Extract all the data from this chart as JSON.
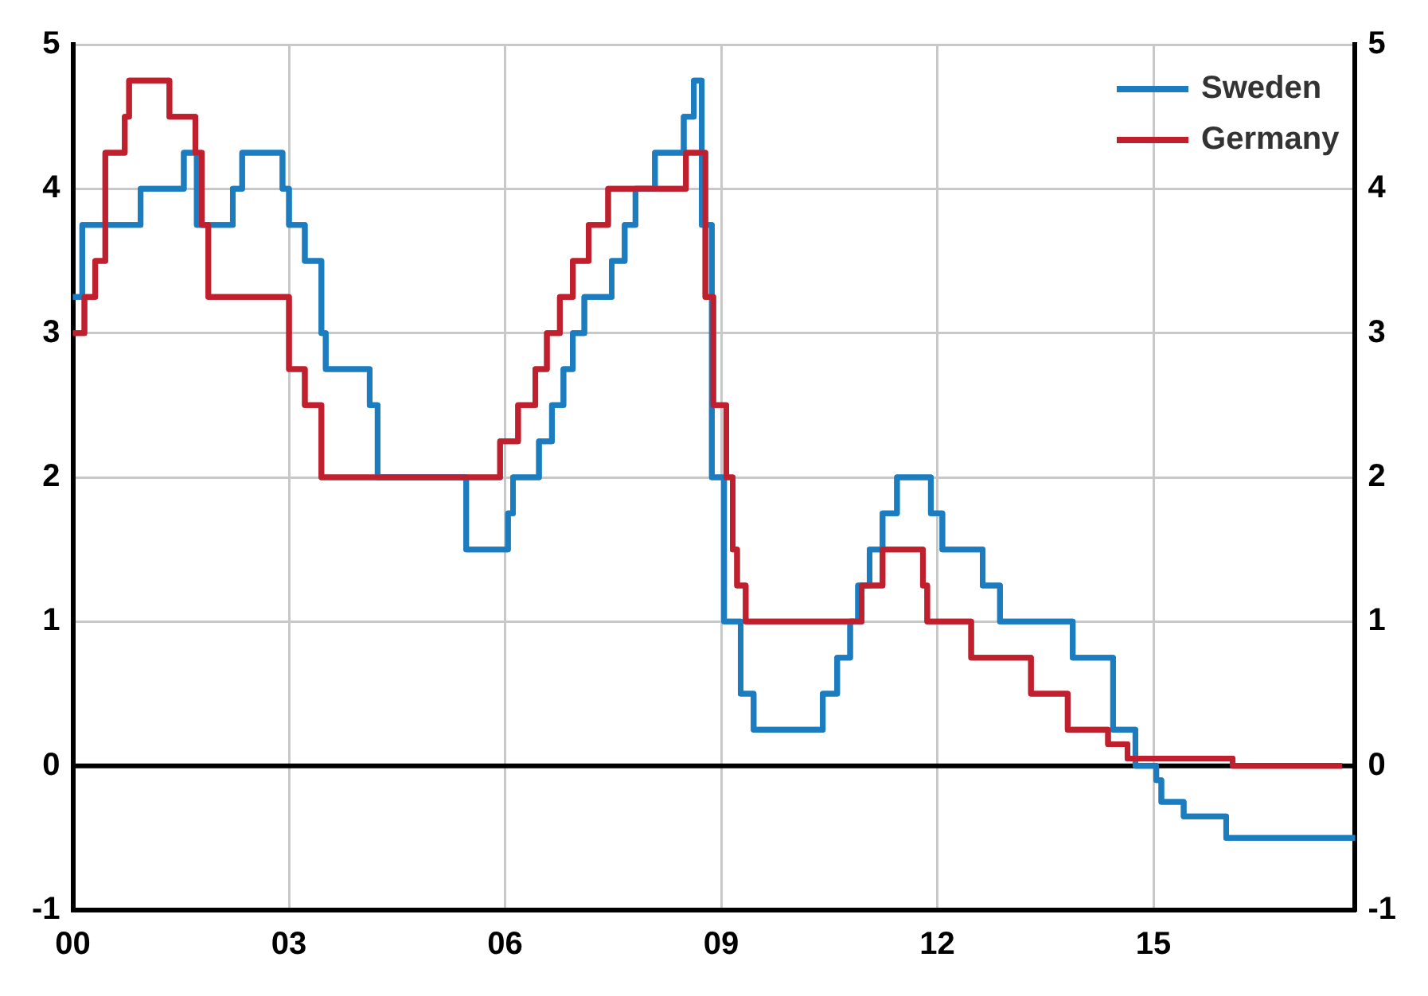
{
  "chart_data": {
    "type": "step",
    "xlim": [
      2000,
      2017.8
    ],
    "xticks": [
      {
        "value": 2000,
        "label": "00"
      },
      {
        "value": 2003,
        "label": "03"
      },
      {
        "value": 2006,
        "label": "06"
      },
      {
        "value": 2009,
        "label": "09"
      },
      {
        "value": 2012,
        "label": "12"
      },
      {
        "value": 2015,
        "label": "15"
      }
    ],
    "ylim": [
      -1,
      5
    ],
    "yticks": [
      -1,
      0,
      1,
      2,
      3,
      4,
      5
    ],
    "y2lim": [
      -1,
      5
    ],
    "y2ticks": [
      -1,
      0,
      1,
      2,
      3,
      4,
      5
    ],
    "grid": true,
    "legend": "top right",
    "marker": "none",
    "line_style": "solid",
    "ref_lines": [
      {
        "axis": "y",
        "value": 0,
        "color": "#000000"
      }
    ],
    "series": [
      {
        "name": "Sweden",
        "color": "#1b7cc0",
        "x": [
          2000,
          2000.13,
          2000.94,
          2001.54,
          2001.72,
          2002.22,
          2002.35,
          2002.91,
          2003,
          2003.22,
          2003.45,
          2003.51,
          2004.12,
          2004.23,
          2005.46,
          2006.04,
          2006.11,
          2006.47,
          2006.65,
          2006.81,
          2006.94,
          2007.1,
          2007.48,
          2007.66,
          2007.81,
          2008.08,
          2008.48,
          2008.62,
          2008.73,
          2008.87,
          2009.04,
          2009.27,
          2009.45,
          2010.41,
          2010.61,
          2010.79,
          2010.9,
          2011.06,
          2011.24,
          2011.44,
          2011.91,
          2012.07,
          2012.63,
          2012.87,
          2013.88,
          2014.44,
          2014.75,
          2015.04,
          2015.11,
          2015.42,
          2016.01,
          2017.8
        ],
        "values": [
          3.25,
          3.75,
          4,
          4.25,
          3.75,
          4,
          4.25,
          4,
          3.75,
          3.5,
          3,
          2.75,
          2.5,
          2,
          1.5,
          1.75,
          2,
          2.25,
          2.5,
          2.75,
          3,
          3.25,
          3.5,
          3.75,
          4,
          4.25,
          4.5,
          4.75,
          3.75,
          2,
          1,
          0.5,
          0.25,
          0.5,
          0.75,
          1,
          1.25,
          1.5,
          1.75,
          2,
          1.75,
          1.5,
          1.25,
          1,
          0.75,
          0.25,
          0,
          -0.1,
          -0.25,
          -0.35,
          -0.5,
          -0.5
        ]
      },
      {
        "name": "Germany",
        "color": "#c01f2e",
        "x": [
          2000,
          2000.16,
          2000.31,
          2000.45,
          2000.72,
          2000.78,
          2001.34,
          2001.7,
          2001.79,
          2001.88,
          2003,
          2003.22,
          2003.45,
          2005.93,
          2006.18,
          2006.42,
          2006.58,
          2006.76,
          2006.94,
          2007.16,
          2007.43,
          2008.51,
          2008.78,
          2008.89,
          2009.07,
          2009.16,
          2009.22,
          2009.34,
          2010.95,
          2011.24,
          2011.8,
          2011.86,
          2012.47,
          2013.3,
          2013.81,
          2014.37,
          2014.64,
          2016.1,
          2017.62
        ],
        "values": [
          3,
          3.25,
          3.5,
          4.25,
          4.5,
          4.75,
          4.5,
          4.25,
          3.75,
          3.25,
          2.75,
          2.5,
          2,
          2.25,
          2.5,
          2.75,
          3,
          3.25,
          3.5,
          3.75,
          4,
          4.25,
          3.25,
          2.5,
          2,
          1.5,
          1.25,
          1,
          1.25,
          1.5,
          1.25,
          1,
          0.75,
          0.5,
          0.25,
          0.15,
          0.05,
          0,
          0
        ]
      }
    ]
  }
}
